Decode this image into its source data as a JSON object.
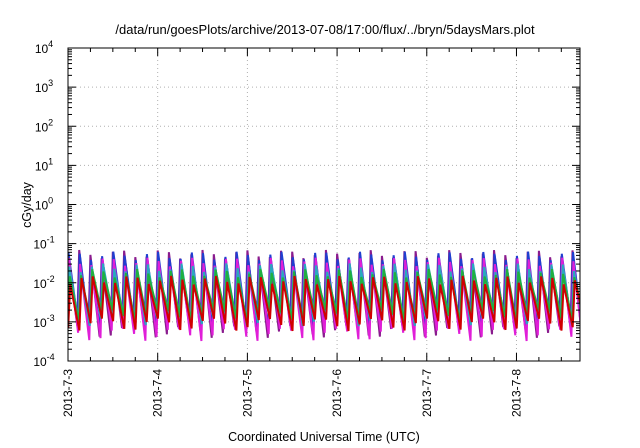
{
  "chart_data": {
    "type": "line",
    "title": "/data/run/goesPlots/archive/2013-07-08/17:00/flux/../bryn/5daysMars.plot",
    "xlabel": "Coordinated Universal Time (UTC)",
    "ylabel": "cGy/day",
    "y_scale": "log",
    "ylim": [
      0.0001,
      10000
    ],
    "y_ticks": [
      {
        "base": "10",
        "exp": "-4"
      },
      {
        "base": "10",
        "exp": "-3"
      },
      {
        "base": "10",
        "exp": "-2"
      },
      {
        "base": "10",
        "exp": "-1"
      },
      {
        "base": "10",
        "exp": "0"
      },
      {
        "base": "10",
        "exp": "1"
      },
      {
        "base": "10",
        "exp": "2"
      },
      {
        "base": "10",
        "exp": "3"
      },
      {
        "base": "10",
        "exp": "4"
      }
    ],
    "x_ticks": [
      "2013-7-3",
      "2013-7-4",
      "2013-7-5",
      "2013-7-6",
      "2013-7-7",
      "2013-7-8"
    ],
    "xlim": [
      "2013-07-03T00:00",
      "2013-07-08T17:00"
    ],
    "grid": true,
    "grid_style": "dotted",
    "oscillation_period_hours": 3,
    "series_envelope": [
      {
        "color": "#8a1b8e",
        "peak": 0.055,
        "trough": 0.0006
      },
      {
        "color": "#1f3fd0",
        "peak": 0.05,
        "trough": 0.0009
      },
      {
        "color": "#e01ed8",
        "peak": 0.035,
        "trough": 0.0005
      },
      {
        "color": "#2aa8c0",
        "peak": 0.025,
        "trough": 0.0012
      },
      {
        "color": "#20b040",
        "peak": 0.018,
        "trough": 0.0015
      },
      {
        "color": "#d00000",
        "peak": 0.012,
        "trough": 0.0009
      }
    ]
  }
}
